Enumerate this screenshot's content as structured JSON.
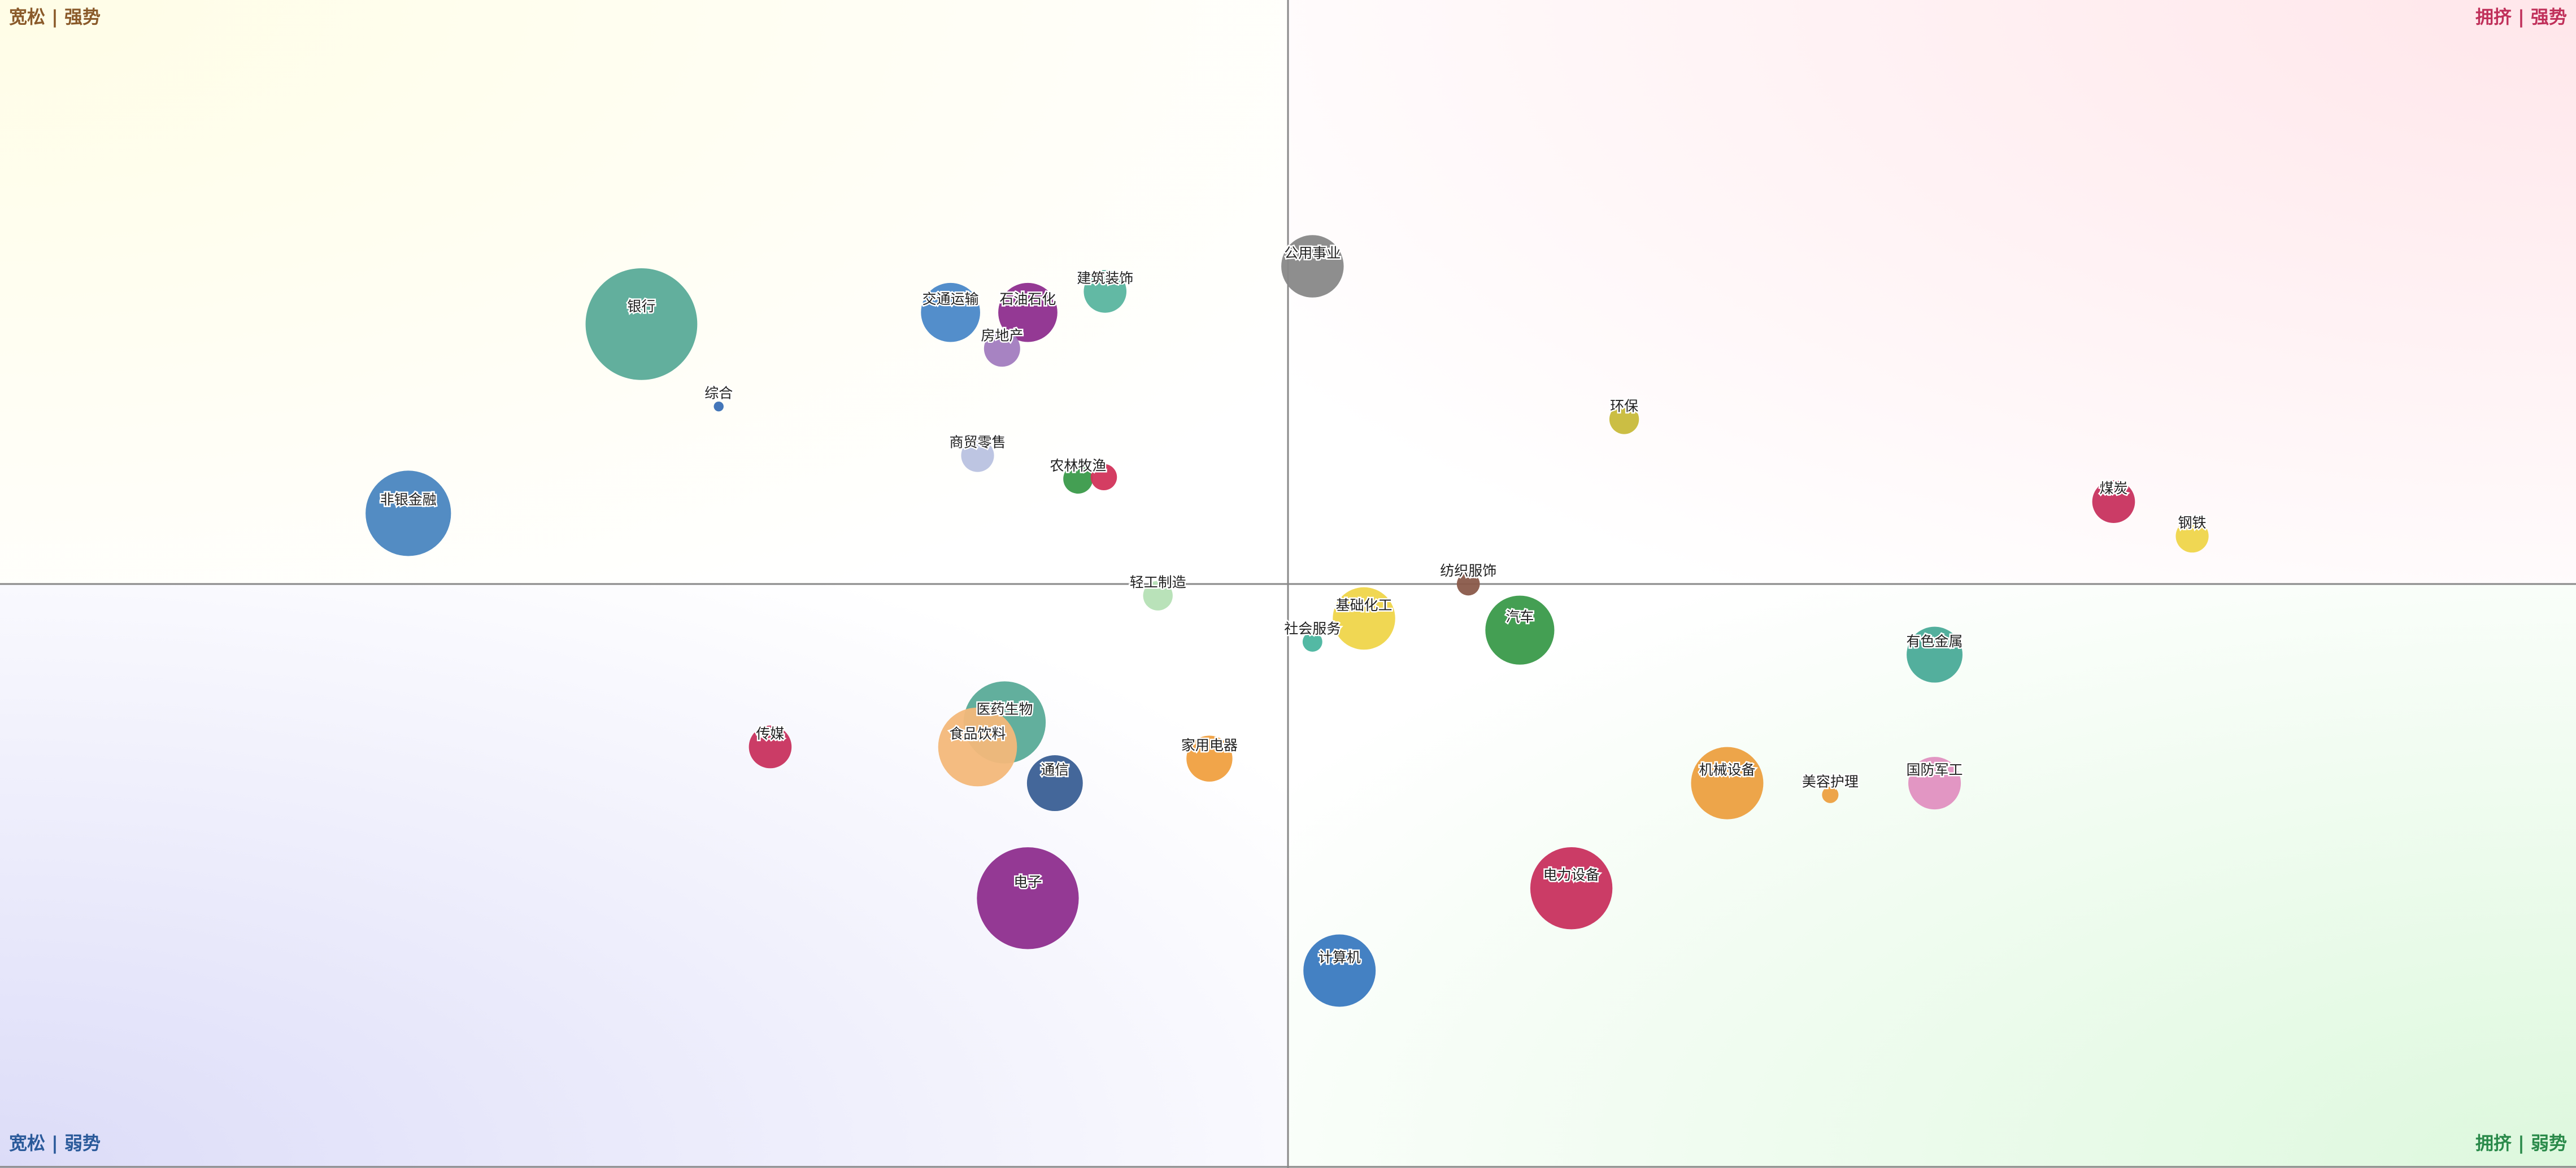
{
  "chart_data": {
    "type": "bubble",
    "quadrants": {
      "top_left": "宽松 | 强势",
      "top_right": "拥挤 | 强势",
      "bottom_left": "宽松 | 弱势",
      "bottom_right": "拥挤 | 弱势"
    },
    "quadrant_colors": {
      "top_left": "#8a5a2a",
      "top_right": "#c0305a",
      "bottom_left": "#2a5a9a",
      "bottom_right": "#2a8a4a"
    },
    "xlim": [
      -100,
      100
    ],
    "ylim": [
      -100,
      100
    ],
    "categories": [
      "银行",
      "交通运输",
      "石油石化",
      "房地产",
      "建筑装饰",
      "公用事业",
      "综合",
      "商贸零售",
      "农林牧渔",
      null,
      "非银金融",
      "环保",
      "煤炭",
      "钢铁",
      "纺织服饰",
      "轻工制造",
      "基础化工",
      "汽车",
      "社会服务",
      "有色金属",
      "医药生物",
      "食品饮料",
      "传媒",
      "通信",
      "家用电器",
      "机械设备",
      "美容护理",
      "国防军工",
      "电子",
      "电力设备",
      "计算机"
    ],
    "x": [
      -50.2,
      -26.2,
      -20.2,
      -22.2,
      -14.2,
      1.9,
      -44.2,
      -24.1,
      -16.3,
      -14.3,
      -68.3,
      26.1,
      64.1,
      70.2,
      14.0,
      -10.1,
      5.9,
      18.0,
      1.9,
      50.2,
      -22.0,
      -24.1,
      -40.2,
      -18.1,
      -6.1,
      34.1,
      42.1,
      50.2,
      -20.2,
      22.0,
      4.0
    ],
    "values": [
      44.5,
      46.5,
      46.5,
      40.3,
      50.1,
      54.4,
      30.4,
      22.0,
      18.0,
      18.3,
      12.1,
      28.2,
      14.1,
      8.2,
      0,
      -2.0,
      -5.9,
      -7.9,
      -9.9,
      -12.1,
      -23.7,
      -27.9,
      -27.9,
      -34.1,
      -29.9,
      -34.1,
      -36.1,
      -34.1,
      -53.8,
      -52.1,
      -66.2
    ],
    "sizes": [
      34,
      18,
      18,
      11,
      13,
      19,
      3,
      10,
      9,
      8,
      26,
      9,
      13,
      10,
      7,
      9,
      19,
      21,
      6,
      17,
      25,
      24,
      13,
      17,
      14,
      22,
      5,
      16,
      31,
      25,
      22
    ],
    "colors": [
      "#5aab98",
      "#4a88c8",
      "#8e2e8e",
      "#a27cbf",
      "#5ab59f",
      "#888888",
      "#3a6fb5",
      "#b9c2e0",
      "#3a9a4a",
      "#d2335a",
      "#4a86c0",
      "#c8bb3a",
      "#c8325e",
      "#efd54a",
      "#8a5a4a",
      "#b5e0b5",
      "#efd54a",
      "#3a9a4a",
      "#4ab59f",
      "#4aab98",
      "#5aab98",
      "#f3b87a",
      "#c8325e",
      "#3a5f95",
      "#f0a040",
      "#eca040",
      "#eca040",
      "#e090c0",
      "#8e2e8e",
      "#c8325e",
      "#3a7ac0"
    ]
  }
}
